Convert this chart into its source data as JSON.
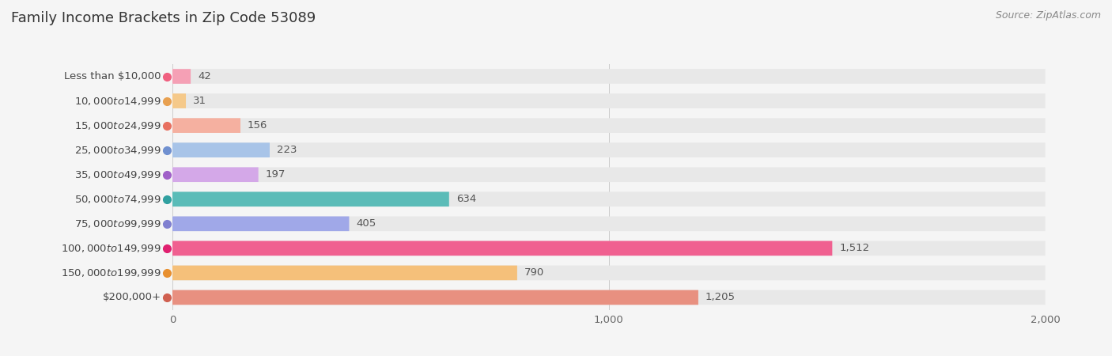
{
  "title": "Family Income Brackets in Zip Code 53089",
  "source": "Source: ZipAtlas.com",
  "categories": [
    "Less than $10,000",
    "$10,000 to $14,999",
    "$15,000 to $24,999",
    "$25,000 to $34,999",
    "$35,000 to $49,999",
    "$50,000 to $74,999",
    "$75,000 to $99,999",
    "$100,000 to $149,999",
    "$150,000 to $199,999",
    "$200,000+"
  ],
  "values": [
    42,
    31,
    156,
    223,
    197,
    634,
    405,
    1512,
    790,
    1205
  ],
  "bar_colors": [
    "#f5a0b5",
    "#f5c98a",
    "#f5b0a0",
    "#a8c4e8",
    "#d4a8e8",
    "#5bbcb8",
    "#a0a8e8",
    "#f06090",
    "#f5c07a",
    "#e89080"
  ],
  "circle_colors": [
    "#f06080",
    "#e8a050",
    "#e87060",
    "#7090d0",
    "#a060c8",
    "#30a0a0",
    "#8080d0",
    "#e02070",
    "#e89030",
    "#d06050"
  ],
  "bg_color": "#f5f5f5",
  "bar_bg_color": "#e8e8e8",
  "xlim": [
    0,
    2000
  ],
  "xticks": [
    0,
    1000,
    2000
  ],
  "title_fontsize": 13,
  "label_fontsize": 9.5,
  "value_fontsize": 9.5,
  "source_fontsize": 9
}
